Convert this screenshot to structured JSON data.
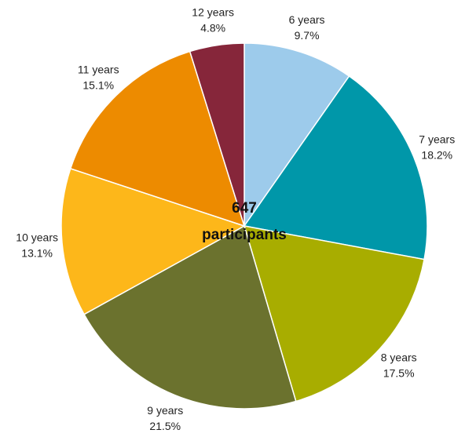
{
  "chart_data": {
    "type": "pie",
    "categories": [
      "6 years",
      "7 years",
      "8 years",
      "9 years",
      "10 years",
      "11 years",
      "12 years"
    ],
    "values": [
      9.7,
      18.2,
      17.5,
      21.5,
      13.1,
      15.1,
      4.8
    ],
    "value_labels": [
      "9.7%",
      "18.2%",
      "17.5%",
      "21.5%",
      "13.1%",
      "15.1%",
      "4.8%"
    ],
    "colors": [
      "#9dcbeb",
      "#0097a9",
      "#a8ad00",
      "#6b722e",
      "#fdb71a",
      "#ed8b00",
      "#86263a"
    ],
    "total": 647,
    "total_label": "participants"
  }
}
